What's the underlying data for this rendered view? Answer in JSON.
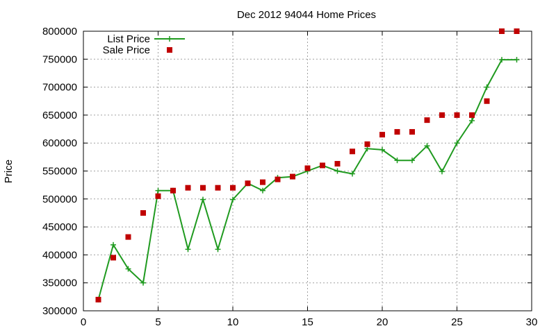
{
  "chart_data": {
    "type": "line",
    "title": "Dec 2012 94044 Home Prices",
    "xlabel": "",
    "ylabel": "Price",
    "xlim": [
      0,
      30
    ],
    "ylim": [
      300000,
      800000
    ],
    "xticks": [
      "0",
      "5",
      "10",
      "15",
      "20",
      "25",
      "30"
    ],
    "yticks": [
      "300000",
      "350000",
      "400000",
      "450000",
      "500000",
      "550000",
      "600000",
      "650000",
      "700000",
      "750000",
      "800000"
    ],
    "grid": true,
    "legend_position": "top-left",
    "colors": {
      "list": "#1f9a1f",
      "sale": "#c00000"
    },
    "series": [
      {
        "name": "List Price",
        "style": "line+cross",
        "x": [
          1,
          2,
          3,
          4,
          5,
          6,
          7,
          8,
          9,
          10,
          11,
          12,
          13,
          14,
          15,
          16,
          17,
          18,
          19,
          20,
          21,
          22,
          23,
          24,
          25,
          26,
          27,
          28,
          29
        ],
        "y": [
          320000,
          418000,
          375000,
          350000,
          515000,
          515000,
          410000,
          499000,
          410000,
          499000,
          528000,
          515000,
          538000,
          540000,
          550000,
          560000,
          550000,
          545000,
          590000,
          588000,
          569000,
          569000,
          595000,
          549000,
          600000,
          640000,
          700000,
          749000,
          749000
        ]
      },
      {
        "name": "Sale Price",
        "style": "square",
        "x": [
          1,
          2,
          3,
          4,
          5,
          6,
          7,
          8,
          9,
          10,
          11,
          12,
          13,
          14,
          15,
          16,
          17,
          18,
          19,
          20,
          21,
          22,
          23,
          24,
          25,
          26,
          27,
          28,
          29
        ],
        "y": [
          320000,
          395000,
          432000,
          475000,
          505000,
          515000,
          520000,
          520000,
          520000,
          520000,
          528000,
          530000,
          535000,
          540000,
          555000,
          560000,
          563000,
          585000,
          598000,
          615000,
          620000,
          620000,
          641000,
          650000,
          650000,
          650000,
          675000,
          800000,
          800000
        ]
      }
    ]
  }
}
